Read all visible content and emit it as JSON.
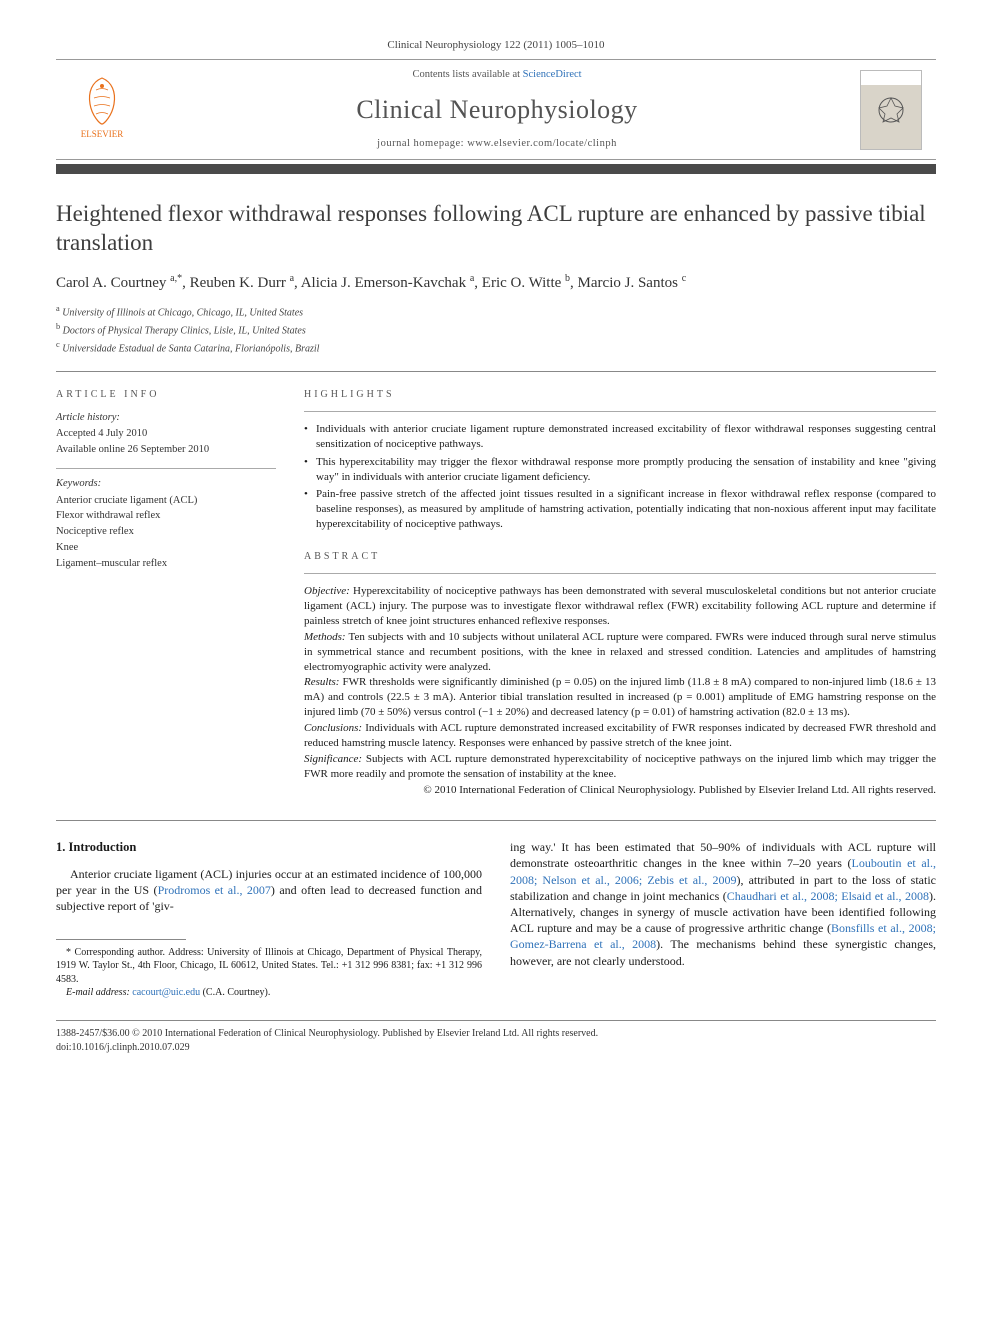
{
  "journal_ref": "Clinical Neurophysiology 122 (2011) 1005–1010",
  "header": {
    "contents_prefix": "Contents lists available at ",
    "contents_link": "ScienceDirect",
    "journal_name": "Clinical Neurophysiology",
    "homepage_prefix": "journal homepage: ",
    "homepage": "www.elsevier.com/locate/clinph",
    "publisher": "ELSEVIER"
  },
  "article": {
    "title": "Heightened flexor withdrawal responses following ACL rupture are enhanced by passive tibial translation",
    "authors_html": "Carol A. Courtney <sup>a,*</sup>, Reuben K. Durr <sup>a</sup>, Alicia J. Emerson-Kavchak <sup>a</sup>, Eric O. Witte <sup>b</sup>, Marcio J. Santos <sup>c</sup>",
    "affiliations": [
      {
        "sup": "a",
        "text": "University of Illinois at Chicago, Chicago, IL, United States"
      },
      {
        "sup": "b",
        "text": "Doctors of Physical Therapy Clinics, Lisle, IL, United States"
      },
      {
        "sup": "c",
        "text": "Universidade Estadual de Santa Catarina, Florianópolis, Brazil"
      }
    ]
  },
  "info": {
    "heading": "article info",
    "history_label": "Article history:",
    "accepted": "Accepted 4 July 2010",
    "online": "Available online 26 September 2010",
    "keywords_label": "Keywords:",
    "keywords": [
      "Anterior cruciate ligament (ACL)",
      "Flexor withdrawal reflex",
      "Nociceptive reflex",
      "Knee",
      "Ligament–muscular reflex"
    ]
  },
  "highlights": {
    "heading": "highlights",
    "items": [
      "Individuals with anterior cruciate ligament rupture demonstrated increased excitability of flexor withdrawal responses suggesting central sensitization of nociceptive pathways.",
      "This hyperexcitability may trigger the flexor withdrawal response more promptly producing the sensation of instability and knee \"giving way\" in individuals with anterior cruciate ligament deficiency.",
      "Pain-free passive stretch of the affected joint tissues resulted in a significant increase in flexor withdrawal reflex response (compared to baseline responses), as measured by amplitude of hamstring activation, potentially indicating that non-noxious afferent input may facilitate hyperexcitability of nociceptive pathways."
    ]
  },
  "abstract": {
    "heading": "abstract",
    "sections": [
      {
        "label": "Objective:",
        "text": "Hyperexcitability of nociceptive pathways has been demonstrated with several musculoskeletal conditions but not anterior cruciate ligament (ACL) injury. The purpose was to investigate flexor withdrawal reflex (FWR) excitability following ACL rupture and determine if painless stretch of knee joint structures enhanced reflexive responses."
      },
      {
        "label": "Methods:",
        "text": "Ten subjects with and 10 subjects without unilateral ACL rupture were compared. FWRs were induced through sural nerve stimulus in symmetrical stance and recumbent positions, with the knee in relaxed and stressed condition. Latencies and amplitudes of hamstring electromyographic activity were analyzed."
      },
      {
        "label": "Results:",
        "text": "FWR thresholds were significantly diminished (p = 0.05) on the injured limb (11.8 ± 8 mA) compared to non-injured limb (18.6 ± 13 mA) and controls (22.5 ± 3 mA). Anterior tibial translation resulted in increased (p = 0.001) amplitude of EMG hamstring response on the injured limb (70 ± 50%) versus control (−1 ± 20%) and decreased latency (p = 0.01) of hamstring activation (82.0 ± 13 ms)."
      },
      {
        "label": "Conclusions:",
        "text": "Individuals with ACL rupture demonstrated increased excitability of FWR responses indicated by decreased FWR threshold and reduced hamstring muscle latency. Responses were enhanced by passive stretch of the knee joint."
      },
      {
        "label": "Significance:",
        "text": "Subjects with ACL rupture demonstrated hyperexcitability of nociceptive pathways on the injured limb which may trigger the FWR more readily and promote the sensation of instability at the knee."
      }
    ],
    "copyright": "© 2010 International Federation of Clinical Neurophysiology. Published by Elsevier Ireland Ltd. All rights reserved."
  },
  "body": {
    "section_number": "1.",
    "section_title": "Introduction",
    "col1": "Anterior cruciate ligament (ACL) injuries occur at an estimated incidence of 100,000 per year in the US (<span class=\"cite\">Prodromos et al., 2007</span>) and often lead to decreased function and subjective report of 'giv-",
    "col2": "ing way.' It has been estimated that 50–90% of individuals with ACL rupture will demonstrate osteoarthritic changes in the knee within 7–20 years (<span class=\"cite\">Louboutin et al., 2008; Nelson et al., 2006; Zebis et al., 2009</span>), attributed in part to the loss of static stabilization and change in joint mechanics (<span class=\"cite\">Chaudhari et al., 2008; Elsaid et al., 2008</span>). Alternatively, changes in synergy of muscle activation have been identified following ACL rupture and may be a cause of progressive arthritic change (<span class=\"cite\">Bonsfills et al., 2008; Gomez-Barrena et al., 2008</span>). The mechanisms behind these synergistic changes, however, are not clearly understood."
  },
  "footnotes": {
    "corr": "* Corresponding author. Address: University of Illinois at Chicago, Department of Physical Therapy, 1919 W. Taylor St., 4th Floor, Chicago, IL 60612, United States. Tel.: +1 312 996 8381; fax: +1 312 996 4583.",
    "email_label": "E-mail address:",
    "email": "cacourt@uic.edu",
    "email_attrib": "(C.A. Courtney)."
  },
  "footer": {
    "line1": "1388-2457/$36.00 © 2010 International Federation of Clinical Neurophysiology. Published by Elsevier Ireland Ltd. All rights reserved.",
    "line2": "doi:10.1016/j.clinph.2010.07.029"
  },
  "colors": {
    "accent_orange": "#e9711c",
    "link_blue": "#2f72b9",
    "rule_dark": "#4a4a4a",
    "text": "#1a1a1a"
  }
}
